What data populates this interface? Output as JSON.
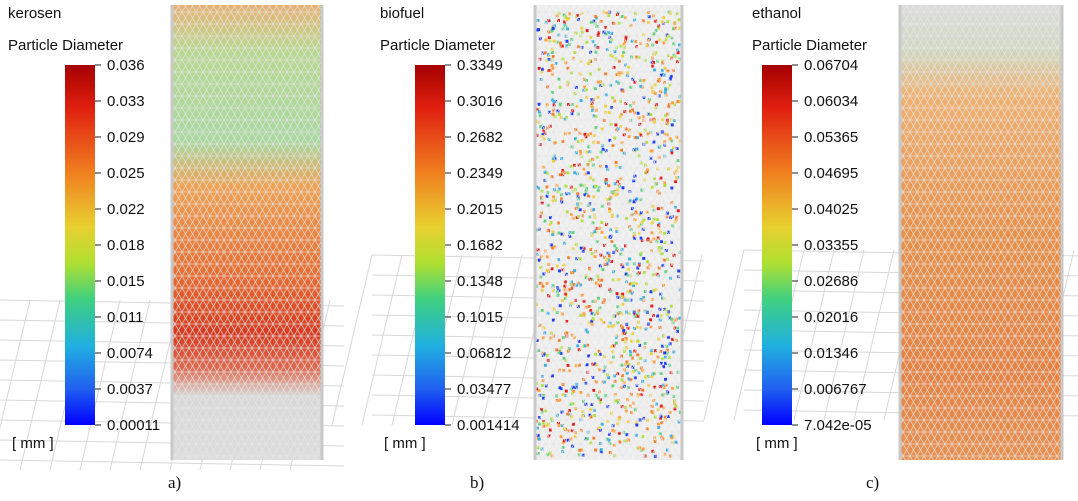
{
  "panels": [
    {
      "fluid": "kerosen",
      "quantity": "Particle Diameter",
      "unit": "[ mm ]",
      "caption": "a)",
      "ticks": [
        "0.036",
        "0.033",
        "0.029",
        "0.025",
        "0.022",
        "0.018",
        "0.015",
        "0.011",
        "0.0074",
        "0.0037",
        "0.00011"
      ]
    },
    {
      "fluid": "biofuel",
      "quantity": "Particle Diameter",
      "unit": "[ mm ]",
      "caption": "b)",
      "ticks": [
        "0.3349",
        "0.3016",
        "0.2682",
        "0.2349",
        "0.2015",
        "0.1682",
        "0.1348",
        "0.1015",
        "0.06812",
        "0.03477",
        "0.001414"
      ]
    },
    {
      "fluid": "ethanol",
      "quantity": "Particle Diameter",
      "unit": "[ mm ]",
      "caption": "c)",
      "ticks": [
        "0.06704",
        "0.06034",
        "0.05365",
        "0.04695",
        "0.04025",
        "0.03355",
        "0.02686",
        "0.02016",
        "0.01346",
        "0.006767",
        "7.042e-05"
      ]
    }
  ]
}
